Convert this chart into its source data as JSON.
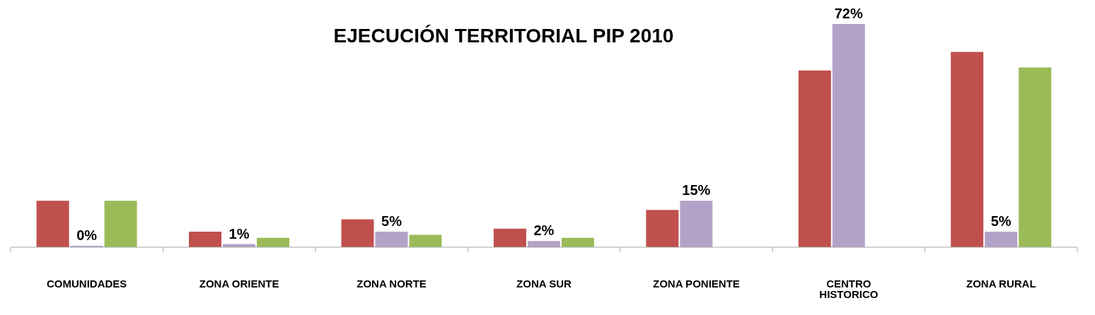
{
  "chart_data": {
    "type": "bar",
    "title": "EJECUCIÓN TERRITORIAL PIP 2010",
    "categories": [
      "COMUNIDADES",
      "ZONA ORIENTE",
      "ZONA NORTE",
      "ZONA SUR",
      "ZONA PONIENTE",
      "CENTRO HISTORICO",
      "ZONA RURAL"
    ],
    "series": [
      {
        "color": "#c0504d",
        "values": [
          15,
          5,
          9,
          6,
          12,
          57,
          63
        ]
      },
      {
        "color": "#b3a2c7",
        "values": [
          0,
          1,
          5,
          2,
          15,
          72,
          5
        ],
        "value_labels": [
          "0%",
          "1%",
          "5%",
          "2%",
          "15%",
          "72%",
          "5%"
        ]
      },
      {
        "color": "#9bbb59",
        "values": [
          15,
          3,
          4,
          3,
          null,
          null,
          58
        ]
      }
    ]
  }
}
